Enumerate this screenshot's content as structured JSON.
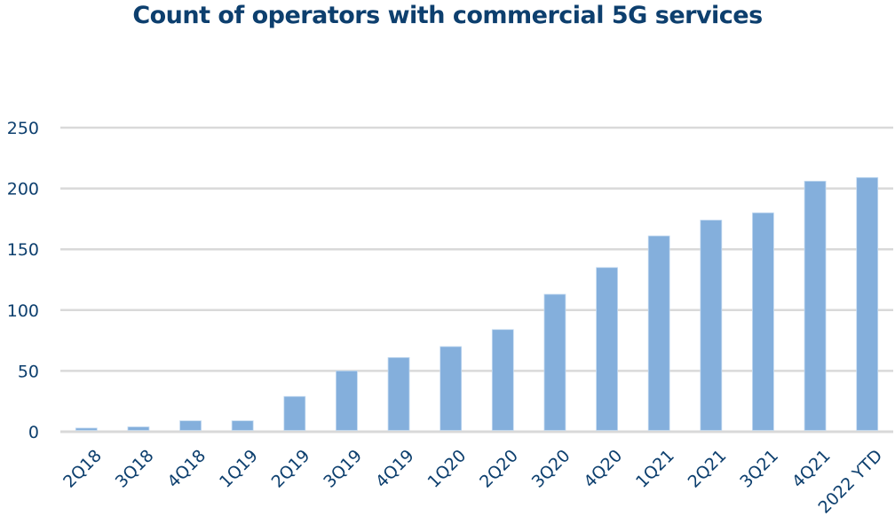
{
  "chart_data": {
    "type": "bar",
    "title": "Count of operators with commercial 5G services",
    "xlabel": "",
    "ylabel": "",
    "categories": [
      "2Q18",
      "3Q18",
      "4Q18",
      "1Q19",
      "2Q19",
      "3Q19",
      "4Q19",
      "1Q20",
      "2Q20",
      "3Q20",
      "4Q20",
      "1Q21",
      "2Q21",
      "3Q21",
      "4Q21",
      "2022 YTD"
    ],
    "values": [
      3,
      4,
      9,
      9,
      29,
      50,
      61,
      70,
      84,
      113,
      135,
      161,
      174,
      180,
      206,
      209
    ],
    "ylim": [
      0,
      250
    ],
    "yticks": [
      0,
      50,
      100,
      150,
      200,
      250
    ],
    "grid": true,
    "legend": "none",
    "colors": {
      "bar": "#84afdc",
      "grid": "#d9d9d9",
      "text": "#0d3f6e"
    }
  }
}
